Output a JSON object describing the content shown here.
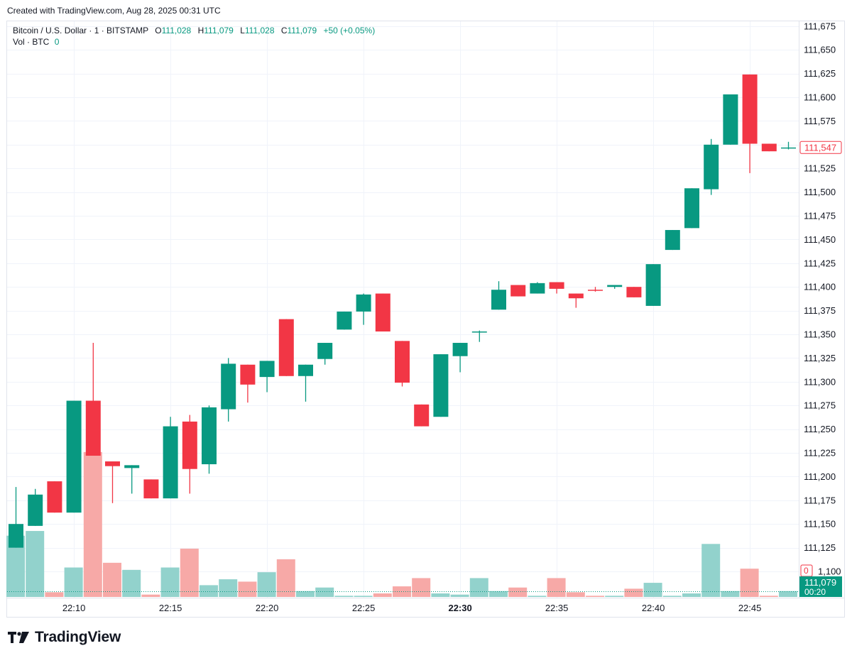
{
  "header": {
    "created_text": "Created with TradingView.com, Aug 28, 2025 00:31 UTC"
  },
  "legend": {
    "symbol": "Bitcoin / U.S. Dollar · 1 · BITSTAMP",
    "o_label": "O",
    "o_value": "111,028",
    "h_label": "H",
    "h_value": "111,079",
    "l_label": "L",
    "l_value": "111,028",
    "c_label": "C",
    "c_value": "111,079",
    "change": "+50 (+0.05%)",
    "vol_label": "Vol · BTC",
    "vol_value": "0"
  },
  "price_tags": {
    "last_price": "111,547",
    "close_price": "111,079",
    "countdown": "00:20",
    "volume": "0"
  },
  "brand": {
    "name": "TradingView"
  },
  "colors": {
    "up": "#089981",
    "down": "#f23645",
    "vol_up": "#92d2cc",
    "vol_down": "#f7a9a7",
    "grid": "#f0f3fa",
    "axis_text": "#131722"
  },
  "chart_data": {
    "type": "candlestick",
    "interval": "1m",
    "ylim": [
      111090,
      111690
    ],
    "y_ticks": [
      111100,
      111125,
      111150,
      111175,
      111200,
      111225,
      111250,
      111275,
      111300,
      111325,
      111350,
      111375,
      111400,
      111425,
      111450,
      111475,
      111500,
      111525,
      111550,
      111575,
      111600,
      111625,
      111650,
      111675
    ],
    "x_ticks": [
      {
        "label": "22:10",
        "index": 3,
        "bold": false
      },
      {
        "label": "22:15",
        "index": 8,
        "bold": false
      },
      {
        "label": "22:20",
        "index": 13,
        "bold": false
      },
      {
        "label": "22:25",
        "index": 18,
        "bold": false
      },
      {
        "label": "22:30",
        "index": 23,
        "bold": true
      },
      {
        "label": "22:35",
        "index": 28,
        "bold": false
      },
      {
        "label": "22:40",
        "index": 33,
        "bold": false
      },
      {
        "label": "22:45",
        "index": 38,
        "bold": false
      }
    ],
    "candles": [
      {
        "t": "22:07",
        "o": 111125,
        "h": 111189,
        "l": 111125,
        "c": 111150,
        "v": 0.52
      },
      {
        "t": "22:08",
        "o": 111148,
        "h": 111187,
        "l": 111148,
        "c": 111181,
        "v": 0.56
      },
      {
        "t": "22:09",
        "o": 111195,
        "h": 111195,
        "l": 111162,
        "c": 111162,
        "v": 0.04
      },
      {
        "t": "22:10",
        "o": 111162,
        "h": 111280,
        "l": 111162,
        "c": 111280,
        "v": 0.25
      },
      {
        "t": "22:11",
        "o": 111280,
        "h": 111341,
        "l": 111222,
        "c": 111222,
        "v": 1.23
      },
      {
        "t": "22:12",
        "o": 111216,
        "h": 111216,
        "l": 111172,
        "c": 111211,
        "v": 0.29
      },
      {
        "t": "22:13",
        "o": 111209,
        "h": 111212,
        "l": 111182,
        "c": 111212,
        "v": 0.23
      },
      {
        "t": "22:14",
        "o": 111197,
        "h": 111197,
        "l": 111177,
        "c": 111177,
        "v": 0.02
      },
      {
        "t": "22:15",
        "o": 111177,
        "h": 111263,
        "l": 111177,
        "c": 111253,
        "v": 0.25
      },
      {
        "t": "22:16",
        "o": 111258,
        "h": 111265,
        "l": 111182,
        "c": 111208,
        "v": 0.41
      },
      {
        "t": "22:17",
        "o": 111213,
        "h": 111275,
        "l": 111203,
        "c": 111273,
        "v": 0.1
      },
      {
        "t": "22:18",
        "o": 111271,
        "h": 111325,
        "l": 111258,
        "c": 111319,
        "v": 0.15
      },
      {
        "t": "22:19",
        "o": 111318,
        "h": 111318,
        "l": 111278,
        "c": 111297,
        "v": 0.13
      },
      {
        "t": "22:20",
        "o": 111305,
        "h": 111322,
        "l": 111289,
        "c": 111322,
        "v": 0.21
      },
      {
        "t": "22:21",
        "o": 111366,
        "h": 111366,
        "l": 111306,
        "c": 111306,
        "v": 0.32
      },
      {
        "t": "22:22",
        "o": 111306,
        "h": 111318,
        "l": 111279,
        "c": 111318,
        "v": 0.05
      },
      {
        "t": "22:23",
        "o": 111324,
        "h": 111341,
        "l": 111318,
        "c": 111341,
        "v": 0.08
      },
      {
        "t": "22:24",
        "o": 111355,
        "h": 111374,
        "l": 111355,
        "c": 111374,
        "v": 0.01
      },
      {
        "t": "22:25",
        "o": 111374,
        "h": 111393,
        "l": 111360,
        "c": 111392,
        "v": 0.01
      },
      {
        "t": "22:26",
        "o": 111393,
        "h": 111393,
        "l": 111353,
        "c": 111353,
        "v": 0.03
      },
      {
        "t": "22:27",
        "o": 111343,
        "h": 111343,
        "l": 111295,
        "c": 111299,
        "v": 0.09
      },
      {
        "t": "22:28",
        "o": 111276,
        "h": 111276,
        "l": 111253,
        "c": 111253,
        "v": 0.16
      },
      {
        "t": "22:29",
        "o": 111263,
        "h": 111329,
        "l": 111263,
        "c": 111329,
        "v": 0.03
      },
      {
        "t": "22:30",
        "o": 111327,
        "h": 111341,
        "l": 111310,
        "c": 111341,
        "v": 0.02
      },
      {
        "t": "22:31",
        "o": 111352,
        "h": 111354,
        "l": 111342,
        "c": 111353,
        "v": 0.16
      },
      {
        "t": "22:32",
        "o": 111376,
        "h": 111406,
        "l": 111376,
        "c": 111397,
        "v": 0.05
      },
      {
        "t": "22:33",
        "o": 111402,
        "h": 111402,
        "l": 111390,
        "c": 111390,
        "v": 0.08
      },
      {
        "t": "22:34",
        "o": 111393,
        "h": 111405,
        "l": 111393,
        "c": 111404,
        "v": 0.01
      },
      {
        "t": "22:35",
        "o": 111405,
        "h": 111405,
        "l": 111393,
        "c": 111398,
        "v": 0.16
      },
      {
        "t": "22:36",
        "o": 111393,
        "h": 111393,
        "l": 111378,
        "c": 111388,
        "v": 0.04
      },
      {
        "t": "22:37",
        "o": 111397,
        "h": 111400,
        "l": 111395,
        "c": 111396,
        "v": 0.01
      },
      {
        "t": "22:38",
        "o": 111400,
        "h": 111402,
        "l": 111398,
        "c": 111402,
        "v": 0.01
      },
      {
        "t": "22:39",
        "o": 111400,
        "h": 111400,
        "l": 111389,
        "c": 111389,
        "v": 0.07
      },
      {
        "t": "22:40",
        "o": 111380,
        "h": 111424,
        "l": 111380,
        "c": 111424,
        "v": 0.12
      },
      {
        "t": "22:41",
        "o": 111439,
        "h": 111460,
        "l": 111439,
        "c": 111460,
        "v": 0.01
      },
      {
        "t": "22:42",
        "o": 111462,
        "h": 111504,
        "l": 111462,
        "c": 111504,
        "v": 0.03
      },
      {
        "t": "22:43",
        "o": 111503,
        "h": 111556,
        "l": 111497,
        "c": 111550,
        "v": 0.45
      },
      {
        "t": "22:44",
        "o": 111550,
        "h": 111603,
        "l": 111550,
        "c": 111603,
        "v": 0.05
      },
      {
        "t": "22:45",
        "o": 111624,
        "h": 111624,
        "l": 111520,
        "c": 111551,
        "v": 0.24
      },
      {
        "t": "22:46",
        "o": 111551,
        "h": 111551,
        "l": 111543,
        "c": 111543,
        "v": 0.01
      },
      {
        "t": "22:47",
        "o": 111547,
        "h": 111553,
        "l": 111545,
        "c": 111547,
        "v": 0.05
      }
    ]
  }
}
